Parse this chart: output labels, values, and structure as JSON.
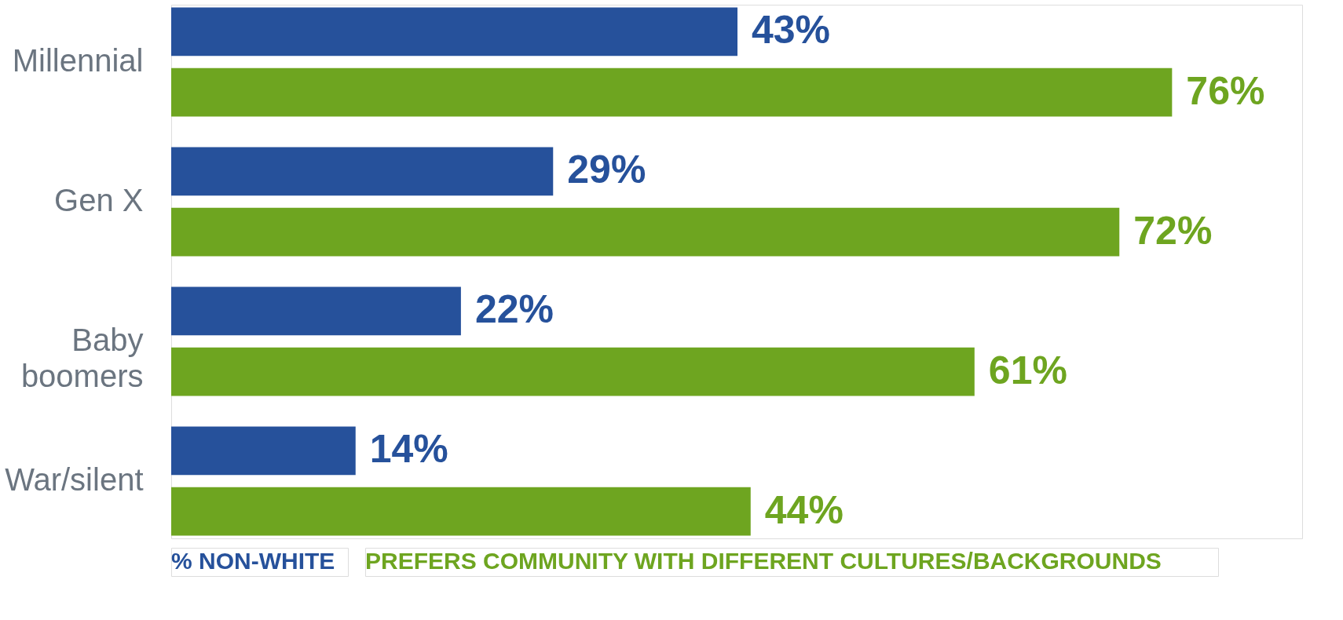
{
  "chart_data": {
    "type": "bar",
    "orientation": "horizontal",
    "categories": [
      "Millennial",
      "Gen X",
      "Baby boomers",
      "War/silent"
    ],
    "series": [
      {
        "name": "% NON-WHITE",
        "color": "#26519b",
        "values": [
          43,
          29,
          22,
          14
        ],
        "value_labels": [
          "43%",
          "29%",
          "22%",
          "14%"
        ]
      },
      {
        "name": "PREFERS COMMUNITY WITH DIFFERENT CULTURES/BACKGROUNDS",
        "color": "#6ea520",
        "values": [
          76,
          72,
          61,
          44
        ],
        "value_labels": [
          "76%",
          "72%",
          "61%",
          "44%"
        ]
      }
    ],
    "legend": "bottom",
    "grid": false
  }
}
